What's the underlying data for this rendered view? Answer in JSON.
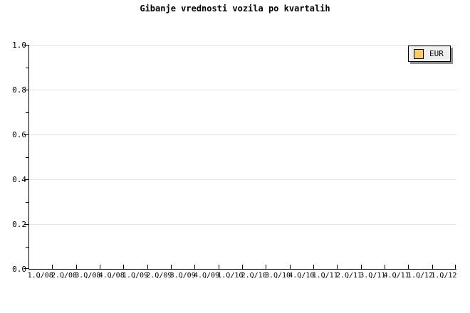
{
  "title": "Gibanje vrednosti vozila po kvartalih",
  "legend": {
    "label": "EUR",
    "swatch_color": "#FCCB66",
    "position": "top-right"
  },
  "axes": {
    "y": {
      "min": 0.0,
      "max": 1.0,
      "major_tick_labels": [
        "0.0",
        "0.2",
        "0.4",
        "0.6",
        "0.8",
        "1.0"
      ],
      "major_tick_values": [
        0.0,
        0.2,
        0.4,
        0.6,
        0.8,
        1.0
      ],
      "minor_tick_values": [
        0.1,
        0.3,
        0.5,
        0.7,
        0.9
      ],
      "gridlines_at": [
        0.2,
        0.4,
        0.6,
        0.8,
        1.0
      ]
    },
    "x": {
      "labels": [
        "1.Q/08",
        "2.Q/08",
        "3.Q/08",
        "4.Q/08",
        "1.Q/09",
        "2.Q/09",
        "3.Q/09",
        "4.Q/09",
        "1.Q/10",
        "2.Q/10",
        "3.Q/10",
        "4.Q/10",
        "1.Q/11",
        "2.Q/11",
        "3.Q/11",
        "4.Q/11",
        "1.Q/12",
        "1.Q/12"
      ]
    }
  },
  "colors": {
    "background": "#ffffff",
    "axis": "#000000",
    "grid": "#e2e2e2",
    "legend_bg": "#efefef",
    "legend_border": "#000000",
    "legend_shadow": "#8e8e8e",
    "text": "#000000",
    "series_eur": "#FCCB66"
  },
  "chart_data": {
    "type": "line",
    "title": "Gibanje vrednosti vozila po kvartalih",
    "categories": [
      "1.Q/08",
      "2.Q/08",
      "3.Q/08",
      "4.Q/08",
      "1.Q/09",
      "2.Q/09",
      "3.Q/09",
      "4.Q/09",
      "1.Q/10",
      "2.Q/10",
      "3.Q/10",
      "4.Q/10",
      "1.Q/11",
      "2.Q/11",
      "3.Q/11",
      "4.Q/11",
      "1.Q/12",
      "1.Q/12"
    ],
    "series": [
      {
        "name": "EUR",
        "color": "#FCCB66",
        "values": []
      }
    ],
    "xlabel": "",
    "ylabel": "",
    "ylim": [
      0.0,
      1.0
    ],
    "y_ticks": [
      0.0,
      0.2,
      0.4,
      0.6,
      0.8,
      1.0
    ],
    "grid": "horizontal major gridlines on",
    "legend_position": "top-right",
    "plot_is_empty": true
  }
}
